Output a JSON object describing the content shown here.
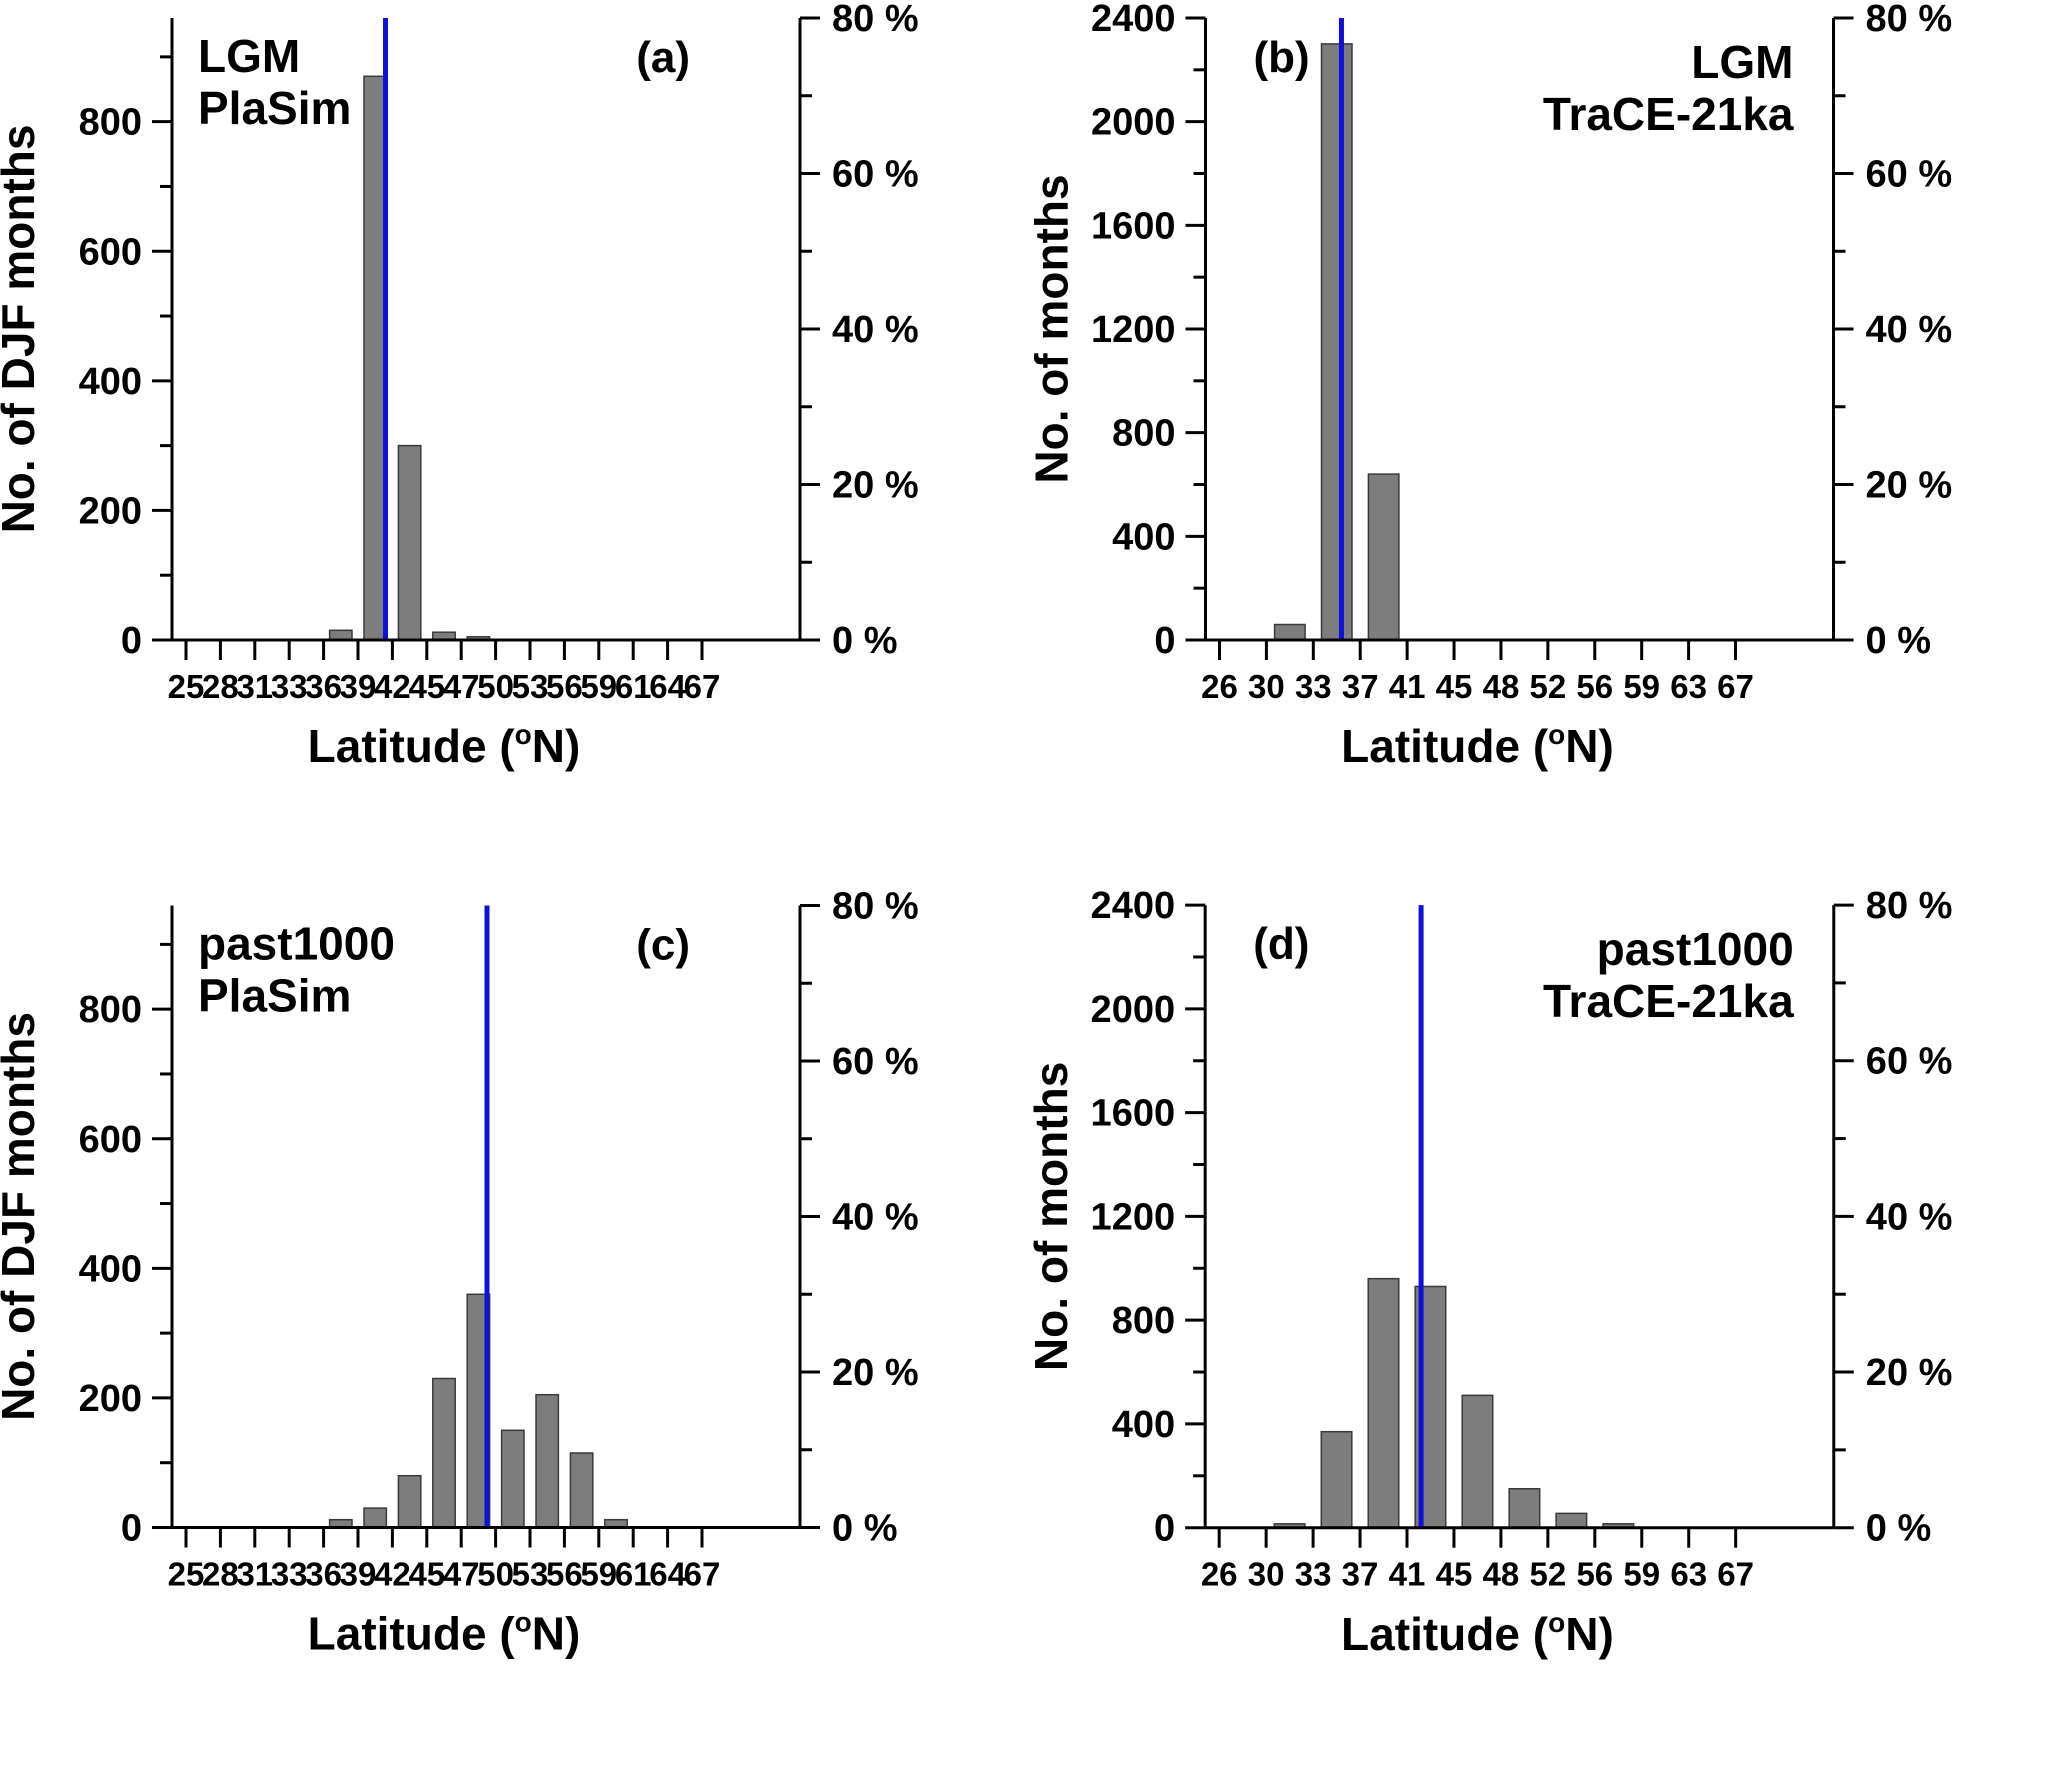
{
  "figure": {
    "background": "#ffffff",
    "axis_color": "#000000",
    "text_color": "#000000",
    "bar_fill": "#7d7d7d",
    "bar_stroke": "#3a3a3a",
    "mean_line_color": "#1010dd"
  },
  "chart_data": [
    {
      "id": "a",
      "type": "bar",
      "panel_label": "(a)",
      "panel_label_corner": "top-right",
      "title_lines": [
        "LGM",
        "PlaSim"
      ],
      "title_corner": "top-left",
      "ylabel": "No. of DJF months",
      "xlabel": {
        "pre": "Latitude (",
        "sup": "o",
        "post": "N)"
      },
      "x_tick_labels": [
        "25",
        "28",
        "31",
        "33",
        "36",
        "39",
        "42",
        "45",
        "47",
        "50",
        "53",
        "56",
        "59",
        "61",
        "64",
        "67"
      ],
      "y_major_ticks": [
        0,
        200,
        400,
        600,
        800
      ],
      "y_minor_step": 100,
      "ylim": [
        0,
        960
      ],
      "percent_labels": [
        "0 %",
        "20 %",
        "40 %",
        "60 %",
        "80 %"
      ],
      "percent_max": 80,
      "bars": [
        {
          "from_tick": 4,
          "to_tick": 5,
          "months": 15
        },
        {
          "from_tick": 5,
          "to_tick": 6,
          "months": 870
        },
        {
          "from_tick": 6,
          "to_tick": 7,
          "months": 300
        },
        {
          "from_tick": 7,
          "to_tick": 8,
          "months": 12
        },
        {
          "from_tick": 8,
          "to_tick": 9,
          "months": 5
        }
      ],
      "mean_line_tick": 5.8
    },
    {
      "id": "b",
      "type": "bar",
      "panel_label": "(b)",
      "panel_label_corner": "top-left",
      "title_lines": [
        "LGM",
        "TraCE-21ka"
      ],
      "title_corner": "top-right",
      "ylabel": "No. of months",
      "xlabel": {
        "pre": "Latitude (",
        "sup": "o",
        "post": "N)"
      },
      "x_tick_labels": [
        "26",
        "30",
        "33",
        "37",
        "41",
        "45",
        "48",
        "52",
        "56",
        "59",
        "63",
        "67"
      ],
      "y_major_ticks": [
        0,
        400,
        800,
        1200,
        1600,
        2000,
        2400
      ],
      "y_minor_step": 200,
      "ylim": [
        0,
        2400
      ],
      "percent_labels": [
        "0 %",
        "20 %",
        "40 %",
        "60 %",
        "80 %"
      ],
      "percent_max": 80,
      "bars": [
        {
          "from_tick": 1,
          "to_tick": 2,
          "months": 60
        },
        {
          "from_tick": 2,
          "to_tick": 3,
          "months": 2300
        },
        {
          "from_tick": 3,
          "to_tick": 4,
          "months": 640
        }
      ],
      "mean_line_tick": 2.6
    },
    {
      "id": "c",
      "type": "bar",
      "panel_label": "(c)",
      "panel_label_corner": "top-right",
      "title_lines": [
        "past1000",
        "PlaSim"
      ],
      "title_corner": "top-left",
      "ylabel": "No. of DJF months",
      "xlabel": {
        "pre": "Latitude (",
        "sup": "o",
        "post": "N)"
      },
      "x_tick_labels": [
        "25",
        "28",
        "31",
        "33",
        "36",
        "39",
        "42",
        "45",
        "47",
        "50",
        "53",
        "56",
        "59",
        "61",
        "64",
        "67"
      ],
      "y_major_ticks": [
        0,
        200,
        400,
        600,
        800
      ],
      "y_minor_step": 100,
      "ylim": [
        0,
        960
      ],
      "percent_labels": [
        "0 %",
        "20 %",
        "40 %",
        "60 %",
        "80 %"
      ],
      "percent_max": 80,
      "bars": [
        {
          "from_tick": 4,
          "to_tick": 5,
          "months": 12
        },
        {
          "from_tick": 5,
          "to_tick": 6,
          "months": 30
        },
        {
          "from_tick": 6,
          "to_tick": 7,
          "months": 80
        },
        {
          "from_tick": 7,
          "to_tick": 8,
          "months": 230
        },
        {
          "from_tick": 8,
          "to_tick": 9,
          "months": 360
        },
        {
          "from_tick": 9,
          "to_tick": 10,
          "months": 150
        },
        {
          "from_tick": 10,
          "to_tick": 11,
          "months": 205
        },
        {
          "from_tick": 11,
          "to_tick": 12,
          "months": 115
        },
        {
          "from_tick": 12,
          "to_tick": 13,
          "months": 12
        }
      ],
      "mean_line_tick": 8.75
    },
    {
      "id": "d",
      "type": "bar",
      "panel_label": "(d)",
      "panel_label_corner": "top-left",
      "title_lines": [
        "past1000",
        "TraCE-21ka"
      ],
      "title_corner": "top-right",
      "ylabel": "No. of months",
      "xlabel": {
        "pre": "Latitude (",
        "sup": "o",
        "post": "N)"
      },
      "x_tick_labels": [
        "26",
        "30",
        "33",
        "37",
        "41",
        "45",
        "48",
        "52",
        "56",
        "59",
        "63",
        "67"
      ],
      "y_major_ticks": [
        0,
        400,
        800,
        1200,
        1600,
        2000,
        2400
      ],
      "y_minor_step": 200,
      "ylim": [
        0,
        2400
      ],
      "percent_labels": [
        "0 %",
        "20 %",
        "40 %",
        "60 %",
        "80 %"
      ],
      "percent_max": 80,
      "bars": [
        {
          "from_tick": 1,
          "to_tick": 2,
          "months": 15
        },
        {
          "from_tick": 2,
          "to_tick": 3,
          "months": 370
        },
        {
          "from_tick": 3,
          "to_tick": 4,
          "months": 960
        },
        {
          "from_tick": 4,
          "to_tick": 5,
          "months": 930
        },
        {
          "from_tick": 5,
          "to_tick": 6,
          "months": 510
        },
        {
          "from_tick": 6,
          "to_tick": 7,
          "months": 150
        },
        {
          "from_tick": 7,
          "to_tick": 8,
          "months": 55
        },
        {
          "from_tick": 8,
          "to_tick": 9,
          "months": 15
        }
      ],
      "mean_line_tick": 4.3
    }
  ]
}
